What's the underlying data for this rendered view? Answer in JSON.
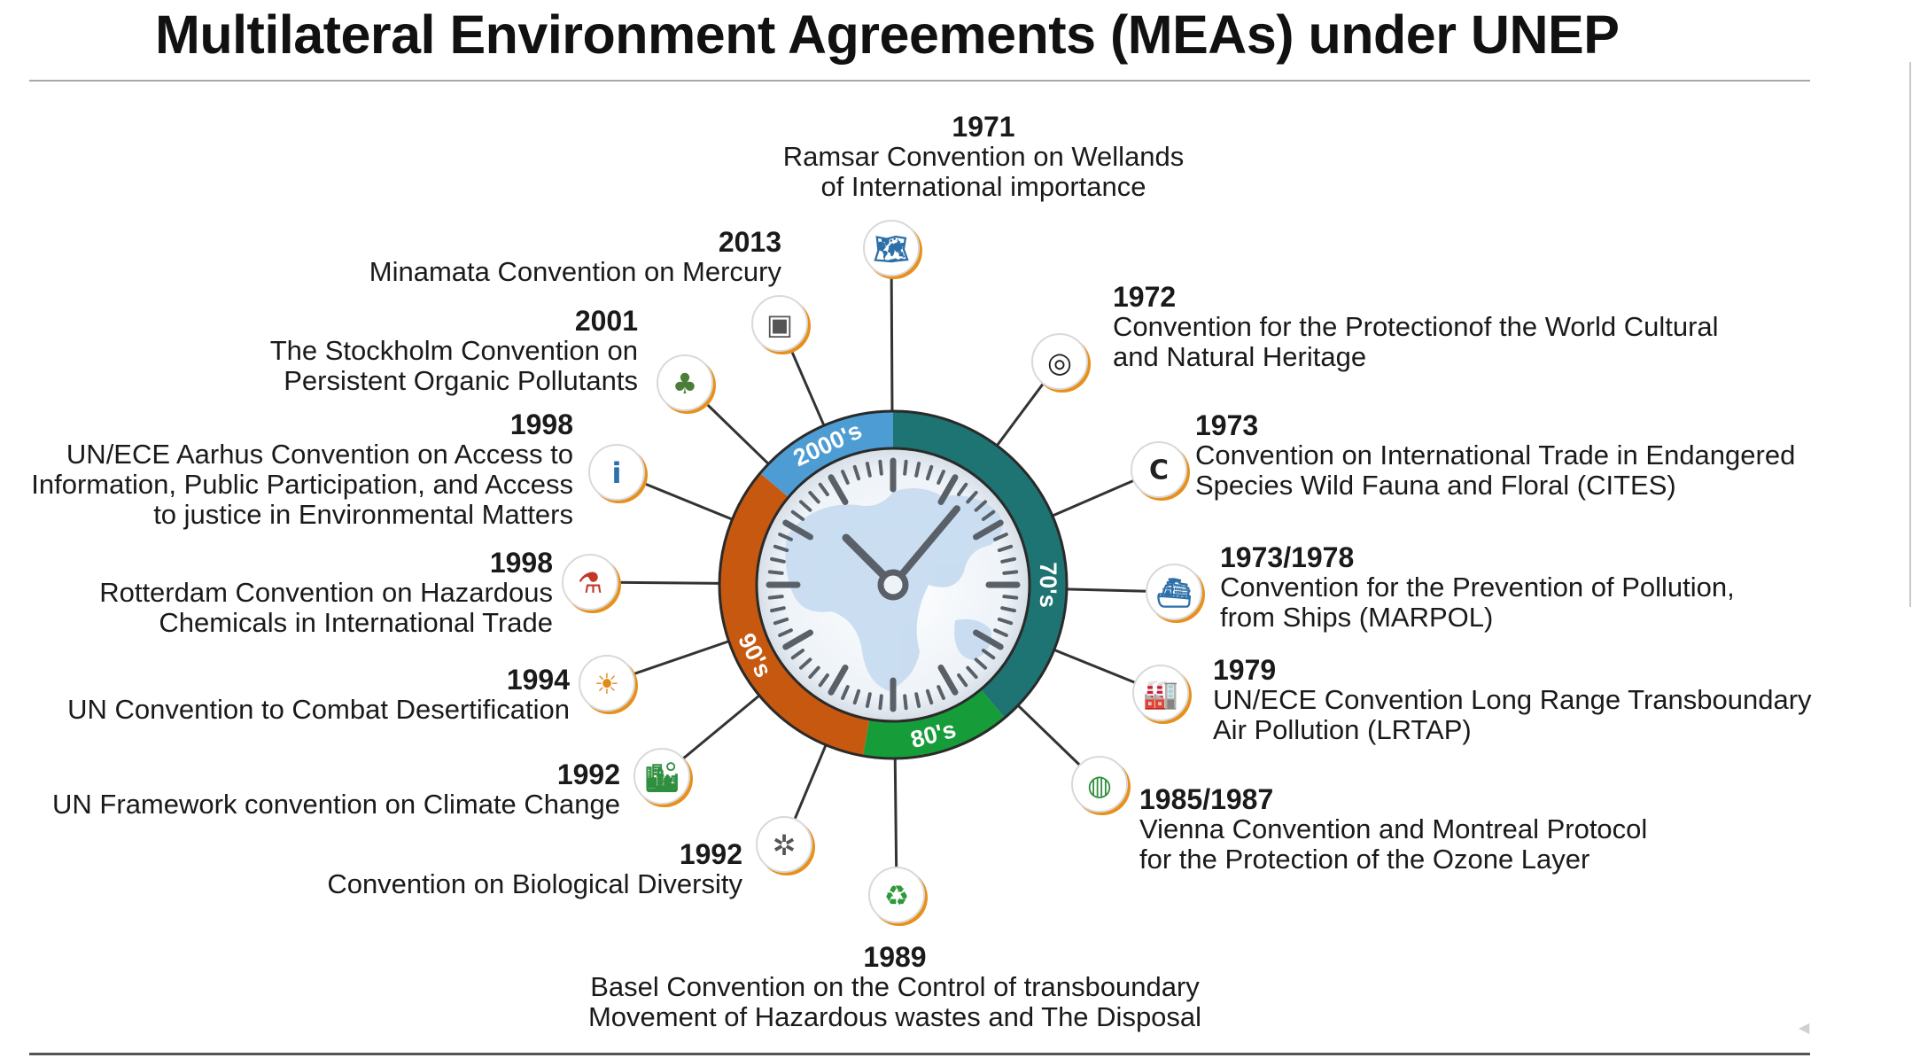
{
  "title": "Multilateral Environment Agreements (MEAs) under UNEP",
  "colors": {
    "era_70s": "#1e7373",
    "era_80s": "#179c3a",
    "era_90s": "#c6580f",
    "era_2000s": "#4d9cd3",
    "icon_ring": "#e8901c"
  },
  "eras": [
    {
      "key": "70s",
      "label": "70's"
    },
    {
      "key": "80s",
      "label": "80's"
    },
    {
      "key": "90s",
      "label": "90's"
    },
    {
      "key": "2000s",
      "label": "2000's"
    }
  ],
  "agreements": [
    {
      "year": "1971",
      "name": "Ramsar Convention on Wellands\nof International importance",
      "icon": "wetland-map-icon"
    },
    {
      "year": "1972",
      "name": "Convention for the Protectionof the World Cultural\nand Natural Heritage",
      "icon": "world-heritage-icon"
    },
    {
      "year": "1973",
      "name": "Convention on International Trade in Endangered\nSpecies Wild Fauna and Floral (CITES)",
      "icon": "cites-logo-icon"
    },
    {
      "year": "1973/1978",
      "name": "Convention for the Prevention of Pollution,\nfrom Ships (MARPOL)",
      "icon": "ship-icon"
    },
    {
      "year": "1979",
      "name": "UN/ECE Convention Long Range Transboundary\nAir Pollution (LRTAP)",
      "icon": "factory-smoke-icon"
    },
    {
      "year": "1985/1987",
      "name": "Vienna Convention and Montreal Protocol\nfor the Protection of the Ozone Layer",
      "icon": "ozone-globe-icon"
    },
    {
      "year": "1989",
      "name": "Basel Convention on the Control of transboundary\nMovement of Hazardous wastes and The Disposal",
      "icon": "recycle-bin-icon"
    },
    {
      "year": "1992",
      "name": "Convention on Biological Diversity",
      "icon": "biodiversity-icon"
    },
    {
      "year": "1992",
      "name": "UN Framework convention on Climate Change",
      "icon": "climate-city-icon"
    },
    {
      "year": "1994",
      "name": "UN Convention to Combat Desertification",
      "icon": "desert-sun-icon"
    },
    {
      "year": "1998",
      "name": "Rotterdam Convention on Hazardous\nChemicals in International Trade",
      "icon": "chemical-flasks-icon"
    },
    {
      "year": "1998",
      "name": "UN/ECE Aarhus Convention on Access to\nInformation, Public Participation, and Access\nto justice in Environmental Matters",
      "icon": "info-hand-icon"
    },
    {
      "year": "2001",
      "name": "The Stockholm Convention on\nPersistent Organic Pollutants",
      "icon": "pollutant-icon"
    },
    {
      "year": "2013",
      "name": "Minamata Convention on Mercury",
      "icon": "mercury-jar-icon"
    }
  ]
}
